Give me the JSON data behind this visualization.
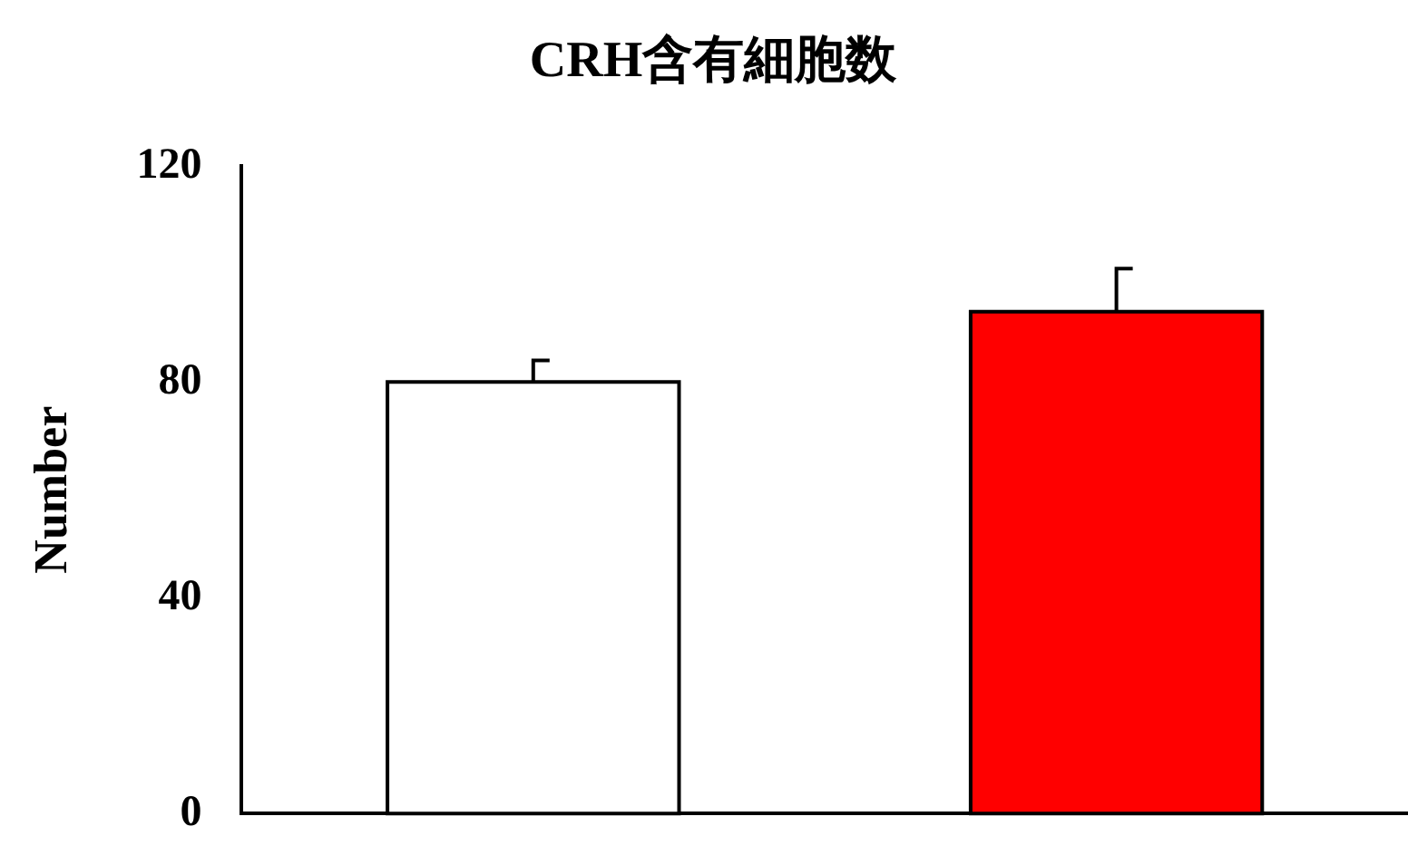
{
  "chart_data": {
    "type": "bar",
    "title": "CRH含有細胞数",
    "ylabel": "Number",
    "categories": [
      null,
      null
    ],
    "values": [
      80,
      93
    ],
    "colors": [
      "#ffffff",
      "#ff0000"
    ],
    "errors": [
      [
        80,
        84
      ],
      [
        93,
        101
      ]
    ],
    "ylim": [
      0,
      120
    ],
    "yticks": [
      0,
      40,
      80,
      120
    ],
    "grid": false,
    "legend": false
  }
}
